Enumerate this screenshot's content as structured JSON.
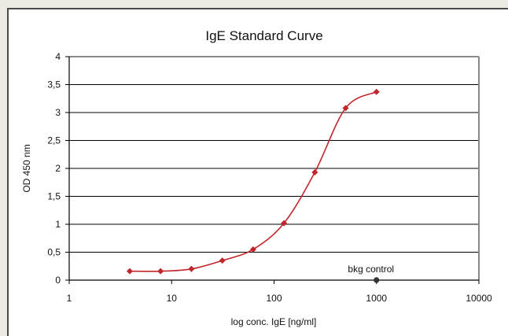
{
  "chart_data": {
    "type": "scatter",
    "title": "IgE Standard Curve",
    "xlabel": "log conc. IgE [ng/ml]",
    "ylabel": "OD 450 nm",
    "x_scale": "log",
    "xlim": [
      1,
      10000
    ],
    "ylim": [
      0,
      4
    ],
    "x_ticks": [
      1,
      10,
      100,
      1000,
      10000
    ],
    "x_tick_labels": [
      "1",
      "10",
      "100",
      "1000",
      "10000"
    ],
    "y_ticks": [
      0,
      0.5,
      1,
      1.5,
      2,
      2.5,
      3,
      3.5,
      4
    ],
    "y_tick_labels": [
      "0",
      "0,5",
      "1",
      "1,5",
      "2",
      "2,5",
      "3",
      "3,5",
      "4"
    ],
    "grid": "horizontal",
    "legend": "none",
    "series": [
      {
        "x": [
          3.9,
          7.8,
          15.6,
          31.25,
          62.5,
          125,
          250,
          500,
          1000
        ],
        "y": [
          0.16,
          0.16,
          0.2,
          0.35,
          0.55,
          1.02,
          1.93,
          3.08,
          3.37
        ],
        "color": "#c0272d",
        "marker": "diamond",
        "line": "smooth"
      }
    ],
    "annotations": [
      {
        "text": "bkg control",
        "x": 1000,
        "y": 0.1,
        "color": "#333333",
        "marker": "circle"
      }
    ]
  }
}
